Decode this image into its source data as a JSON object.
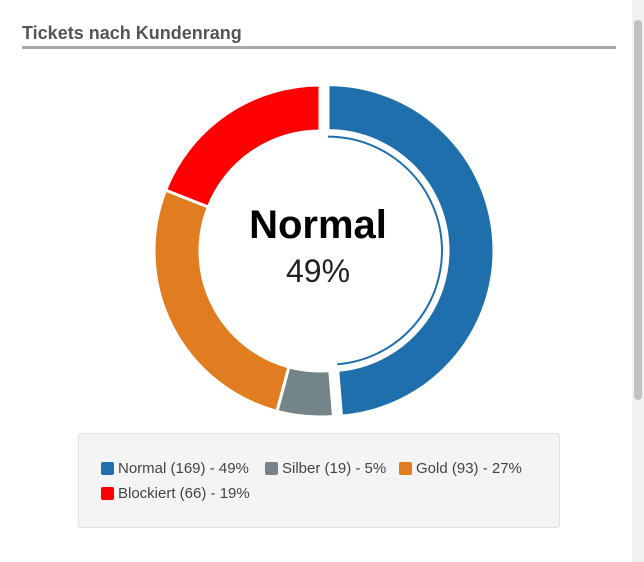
{
  "panel": {
    "title": "Tickets nach Kundenrang"
  },
  "chart_data": {
    "type": "pie",
    "style": "donut",
    "center_label": "Normal",
    "center_value": "49%",
    "highlighted": "Normal",
    "slices": [
      {
        "name": "Normal",
        "count": 169,
        "percent": 49,
        "color": "#1f6fad",
        "legend": "Normal (169) - 49%"
      },
      {
        "name": "Silber",
        "count": 19,
        "percent": 5,
        "color": "#738588",
        "legend": "Silber (19) - 5%"
      },
      {
        "name": "Gold",
        "count": 93,
        "percent": 27,
        "color": "#e07d20",
        "legend": "Gold (93) - 27%"
      },
      {
        "name": "Blockiert",
        "count": 66,
        "percent": 19,
        "color": "#ff0000",
        "legend": "Blockiert (66) - 19%"
      }
    ]
  }
}
